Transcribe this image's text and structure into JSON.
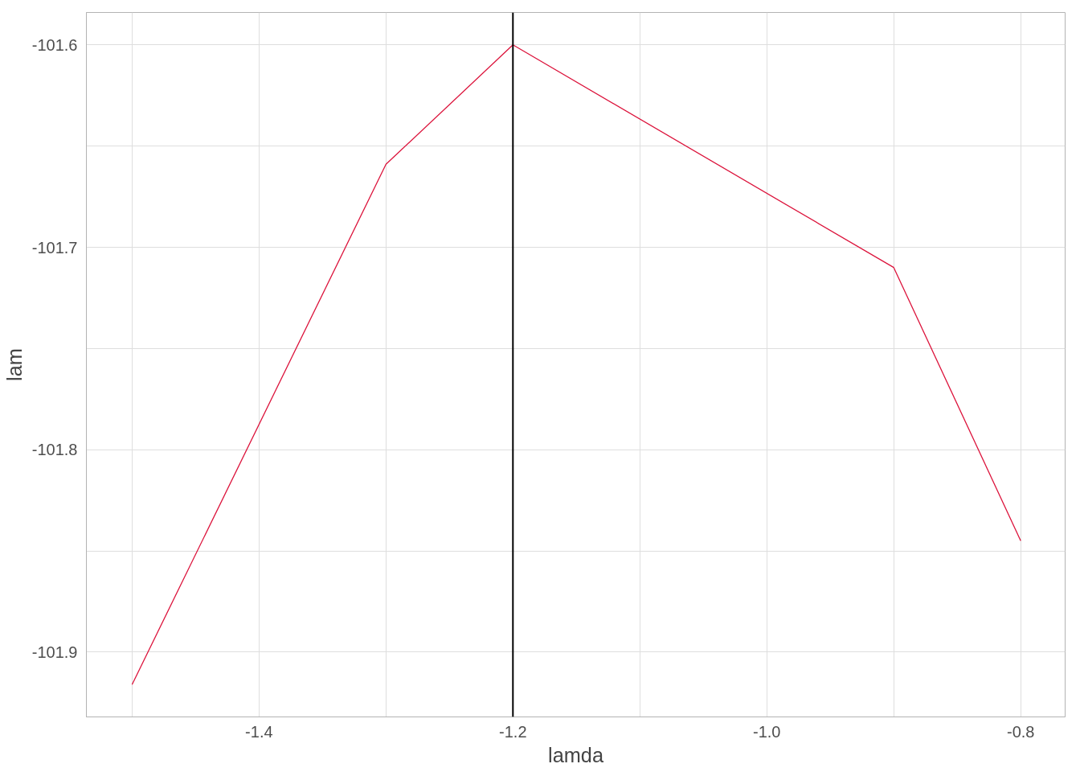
{
  "chart_data": {
    "type": "line",
    "xlabel": "lamda",
    "ylabel": "lam",
    "x": [
      -1.5,
      -1.3,
      -1.2,
      -0.9,
      -0.8
    ],
    "series": [
      {
        "color": "#dc143c",
        "values": [
          -101.916,
          -101.659,
          -101.6,
          -101.71,
          -101.845
        ]
      }
    ],
    "xlim": [
      -1.536,
      -0.765
    ],
    "xticks": [
      {
        "value": -1.5,
        "label": null
      },
      {
        "value": -1.4,
        "label": "-1.4"
      },
      {
        "value": -1.3,
        "label": null
      },
      {
        "value": -1.2,
        "label": "-1.2"
      },
      {
        "value": -1.1,
        "label": null
      },
      {
        "value": -1.0,
        "label": "-1.0"
      },
      {
        "value": -0.9,
        "label": null
      },
      {
        "value": -0.8,
        "label": "-0.8"
      }
    ],
    "ylim": [
      -101.932,
      -101.584
    ],
    "yticks": [
      {
        "value": -101.9,
        "label": "-101.9"
      },
      {
        "value": -101.85,
        "label": null
      },
      {
        "value": -101.8,
        "label": "-101.8"
      },
      {
        "value": -101.75,
        "label": null
      },
      {
        "value": -101.7,
        "label": "-101.7"
      },
      {
        "value": -101.65,
        "label": null
      },
      {
        "value": -101.6,
        "label": "-101.6"
      }
    ],
    "ref_lines": [
      {
        "axis": "x",
        "value": -1.2,
        "color": "#000000"
      }
    ],
    "grid": true,
    "marker": "none",
    "line_style": "solid"
  }
}
